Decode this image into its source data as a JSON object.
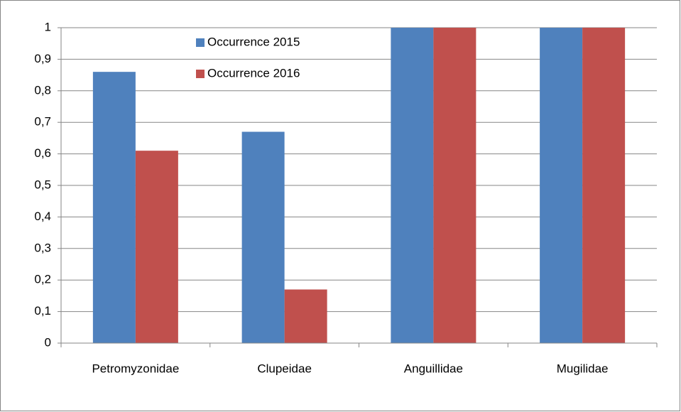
{
  "chart_data": {
    "type": "bar",
    "categories": [
      "Petromyzonidae",
      "Clupeidae",
      "Anguillidae",
      "Mugilidae"
    ],
    "series": [
      {
        "name": "Occurrence 2015",
        "color": "#4f81bd",
        "values": [
          0.86,
          0.67,
          1,
          1
        ]
      },
      {
        "name": "Occurrence 2016",
        "color": "#c0504d",
        "values": [
          0.61,
          0.17,
          1,
          1
        ]
      }
    ],
    "ylim": [
      0,
      1
    ],
    "yticks": [
      0,
      {
        "value": 0.1,
        "label": "0,1"
      },
      {
        "value": 0.2,
        "label": "0,2"
      },
      {
        "value": 0.3,
        "label": "0,3"
      },
      {
        "value": 0.4,
        "label": "0,4"
      },
      {
        "value": 0.5,
        "label": "0,5"
      },
      {
        "value": 0.6,
        "label": "0,6"
      },
      {
        "value": 0.7,
        "label": "0,7"
      },
      {
        "value": 0.8,
        "label": "0,8"
      },
      {
        "value": 0.9,
        "label": "0,9"
      },
      1
    ],
    "grid": true,
    "legend": "top"
  }
}
